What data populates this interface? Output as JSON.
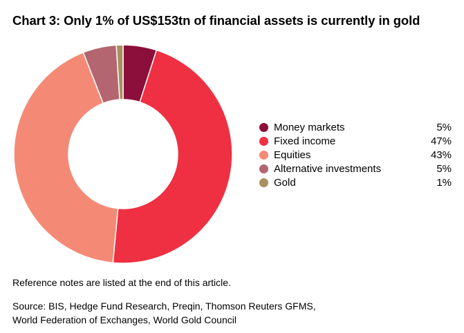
{
  "title": "Chart 3: Only 1% of US$153tn of financial assets is currently in gold",
  "chart_data": {
    "type": "pie",
    "variant": "donut",
    "title": "Chart 3: Only 1% of US$153tn of financial assets is currently in gold",
    "categories": [
      "Money markets",
      "Fixed income",
      "Equities",
      "Alternative investments",
      "Gold"
    ],
    "values": [
      5,
      47,
      43,
      5,
      1
    ],
    "labels": [
      "5%",
      "47%",
      "43%",
      "5%",
      "1%"
    ],
    "unit": "%",
    "colors": [
      "#8B0F3A",
      "#EE3042",
      "#F48A76",
      "#B46670",
      "#A89060"
    ],
    "legend_position": "right"
  },
  "notes": "Reference notes are listed at the end of this article.",
  "source": {
    "line1": "Source: BIS, Hedge Fund Research, Preqin, Thomson Reuters GFMS,",
    "line2": "World Federation of Exchanges, World Gold Council"
  }
}
